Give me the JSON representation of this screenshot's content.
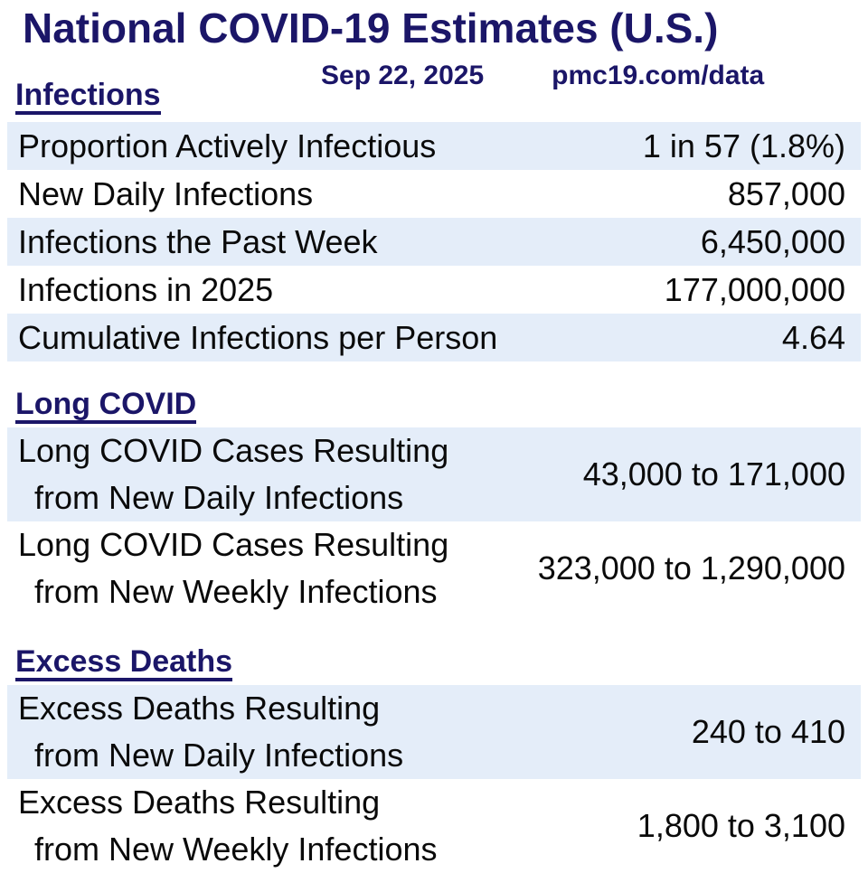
{
  "chart_data": {
    "type": "table",
    "title": "National COVID-19 Estimates (U.S.)",
    "date": "Sep 22, 2025",
    "source": "pmc19.com/data",
    "sections": [
      {
        "heading": "Infections",
        "rows": [
          {
            "label": "Proportion Actively Infectious",
            "value": "1 in 57 (1.8%)",
            "highlighted": true
          },
          {
            "label": "New Daily Infections",
            "value": "857,000",
            "highlighted": false
          },
          {
            "label": "Infections the Past Week",
            "value": "6,450,000",
            "highlighted": true
          },
          {
            "label": "Infections in 2025",
            "value": "177,000,000",
            "highlighted": false
          },
          {
            "label": "Cumulative Infections per Person",
            "value": "4.64",
            "highlighted": true
          }
        ]
      },
      {
        "heading": "Long COVID",
        "rows": [
          {
            "label_lines": [
              "Long COVID Cases Resulting",
              "from New Daily Infections"
            ],
            "value": "43,000 to 171,000",
            "highlighted": true
          },
          {
            "label_lines": [
              "Long COVID Cases Resulting",
              "from New Weekly Infections"
            ],
            "value": "323,000 to 1,290,000",
            "highlighted": false
          }
        ]
      },
      {
        "heading": "Excess Deaths",
        "rows": [
          {
            "label_lines": [
              "Excess Deaths Resulting",
              "from New Daily Infections"
            ],
            "value": "240 to 410",
            "highlighted": true
          },
          {
            "label_lines": [
              "Excess Deaths Resulting",
              "from New Weekly Infections"
            ],
            "value": "1,800 to 3,100",
            "highlighted": false
          }
        ]
      }
    ]
  },
  "colors": {
    "navy": "#1b1668",
    "row_highlight": "#e4edf9",
    "text": "#0a0a0a"
  }
}
